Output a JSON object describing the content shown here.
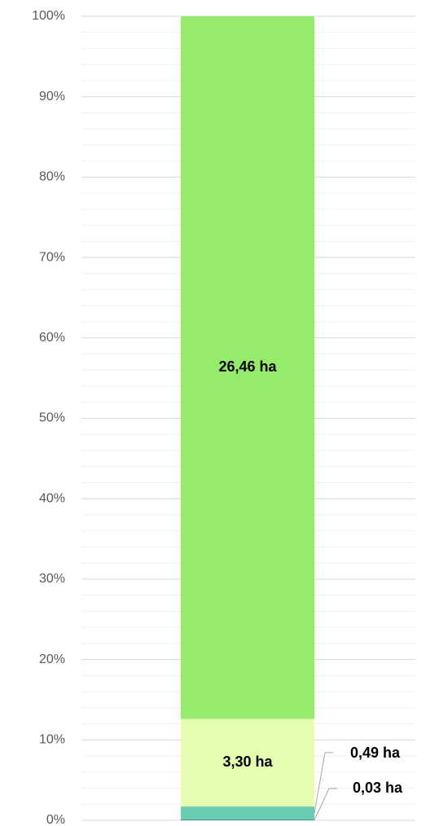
{
  "chart_data": {
    "type": "stacked_percent_bar",
    "categories": [
      null
    ],
    "series": [
      {
        "color": "#3f9c8a",
        "values": [
          0.03
        ],
        "value_labels": [
          "0,03 ha"
        ]
      },
      {
        "color": "#6ccbb5",
        "values": [
          0.49
        ],
        "value_labels": [
          "0,49 ha"
        ]
      },
      {
        "color": "#e4fdb0",
        "values": [
          3.3
        ],
        "value_labels": [
          "3,30 ha"
        ]
      },
      {
        "color": "#96ea6c",
        "values": [
          26.46
        ],
        "value_labels": [
          "26,46 ha"
        ]
      }
    ],
    "ylim": [
      0,
      100
    ],
    "yticks": [
      {
        "value": 0,
        "label": "0%"
      },
      {
        "value": 10,
        "label": "10%"
      },
      {
        "value": 20,
        "label": "20%"
      },
      {
        "value": 30,
        "label": "30%"
      },
      {
        "value": 40,
        "label": "40%"
      },
      {
        "value": 50,
        "label": "50%"
      },
      {
        "value": 60,
        "label": "60%"
      },
      {
        "value": 70,
        "label": "70%"
      },
      {
        "value": 80,
        "label": "80%"
      },
      {
        "value": 90,
        "label": "90%"
      },
      {
        "value": 100,
        "label": "100%"
      }
    ],
    "minor_yticks": [
      2,
      4,
      6,
      8,
      12,
      14,
      16,
      18,
      22,
      24,
      26,
      28,
      32,
      34,
      36,
      38,
      42,
      44,
      46,
      48,
      52,
      54,
      56,
      58,
      62,
      64,
      66,
      68,
      72,
      74,
      76,
      78,
      82,
      84,
      86,
      88,
      92,
      94,
      96,
      98
    ],
    "grid": true
  }
}
